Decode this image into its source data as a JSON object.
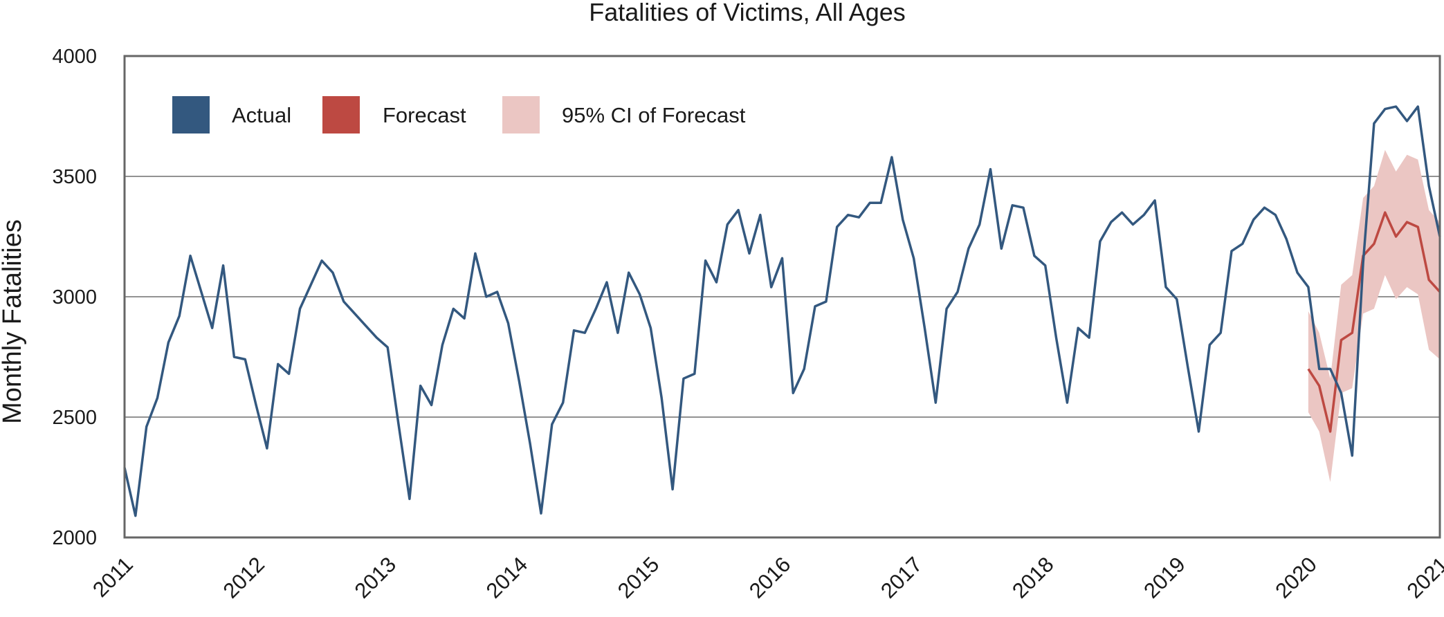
{
  "chart_data": {
    "type": "line",
    "title": "Fatalities of Victims, All Ages",
    "xlabel": "",
    "ylabel": "Monthly Fatalities",
    "xlim": [
      2011,
      2021
    ],
    "ylim": [
      2000,
      4000
    ],
    "y_ticks": [
      2000,
      2500,
      3000,
      3500,
      4000
    ],
    "y_tick_labels": [
      "2000",
      "2500",
      "3000",
      "3500",
      "4000"
    ],
    "gridlines": [
      2500,
      3000,
      3500
    ],
    "x_ticks": [
      2011,
      2012,
      2013,
      2014,
      2015,
      2016,
      2017,
      2018,
      2019,
      2020,
      2021
    ],
    "x_tick_labels": [
      "2011",
      "2012",
      "2013",
      "2014",
      "2015",
      "2016",
      "2017",
      "2018",
      "2019",
      "2020",
      "2021"
    ],
    "legend": {
      "position": "top-left",
      "entries": [
        {
          "label": "Actual",
          "color": "#33587f"
        },
        {
          "label": "Forecast",
          "color": "#bd4942"
        },
        {
          "label": "95% CI of Forecast",
          "color": "#ebc6c3"
        }
      ]
    },
    "series": [
      {
        "name": "Actual",
        "color": "#33587f",
        "x": [
          2011,
          2011.0833,
          2011.1667,
          2011.25,
          2011.3333,
          2011.4167,
          2011.5,
          2011.5833,
          2011.6667,
          2011.75,
          2011.8333,
          2011.9167,
          2012,
          2012.0833,
          2012.1667,
          2012.25,
          2012.3333,
          2012.4167,
          2012.5,
          2012.5833,
          2012.6667,
          2012.75,
          2012.8333,
          2012.9167,
          2013,
          2013.0833,
          2013.1667,
          2013.25,
          2013.3333,
          2013.4167,
          2013.5,
          2013.5833,
          2013.6667,
          2013.75,
          2013.8333,
          2013.9167,
          2014,
          2014.0833,
          2014.1667,
          2014.25,
          2014.3333,
          2014.4167,
          2014.5,
          2014.5833,
          2014.6667,
          2014.75,
          2014.8333,
          2014.9167,
          2015,
          2015.0833,
          2015.1667,
          2015.25,
          2015.3333,
          2015.4167,
          2015.5,
          2015.5833,
          2015.6667,
          2015.75,
          2015.8333,
          2015.9167,
          2016,
          2016.0833,
          2016.1667,
          2016.25,
          2016.3333,
          2016.4167,
          2016.5,
          2016.5833,
          2016.6667,
          2016.75,
          2016.8333,
          2016.9167,
          2017,
          2017.0833,
          2017.1667,
          2017.25,
          2017.3333,
          2017.4167,
          2017.5,
          2017.5833,
          2017.6667,
          2017.75,
          2017.8333,
          2017.9167,
          2018,
          2018.0833,
          2018.1667,
          2018.25,
          2018.3333,
          2018.4167,
          2018.5,
          2018.5833,
          2018.6667,
          2018.75,
          2018.8333,
          2018.9167,
          2019,
          2019.0833,
          2019.1667,
          2019.25,
          2019.3333,
          2019.4167,
          2019.5,
          2019.5833,
          2019.6667,
          2019.75,
          2019.8333,
          2019.9167,
          2020,
          2020.0833,
          2020.1667,
          2020.25,
          2020.3333,
          2020.4167,
          2020.5,
          2020.5833,
          2020.6667,
          2020.75,
          2020.8333,
          2020.9167,
          2021
        ],
        "values": [
          2290,
          2090,
          2460,
          2580,
          2810,
          2920,
          3170,
          3020,
          2870,
          3130,
          2750,
          2740,
          2550,
          2370,
          2720,
          2680,
          2950,
          3050,
          3150,
          3100,
          2980,
          2930,
          2880,
          2830,
          2790,
          2470,
          2160,
          2630,
          2550,
          2800,
          2950,
          2910,
          3180,
          3000,
          3020,
          2890,
          2650,
          2390,
          2100,
          2470,
          2560,
          2860,
          2850,
          2950,
          3060,
          2850,
          3100,
          3010,
          2870,
          2580,
          2200,
          2660,
          2680,
          3150,
          3060,
          3300,
          3360,
          3180,
          3340,
          3040,
          3160,
          2600,
          2700,
          2960,
          2980,
          3290,
          3340,
          3330,
          3390,
          3390,
          3580,
          3320,
          3160,
          2870,
          2560,
          2950,
          3020,
          3200,
          3300,
          3530,
          3200,
          3380,
          3370,
          3170,
          3130,
          2830,
          2560,
          2870,
          2830,
          3230,
          3310,
          3350,
          3300,
          3340,
          3400,
          3040,
          2990,
          2710,
          2440,
          2800,
          2850,
          3190,
          3220,
          3320,
          3370,
          3340,
          3240,
          3100,
          3040,
          2700,
          2700,
          2600,
          2340,
          3140,
          3720,
          3780,
          3790,
          3730,
          3790,
          3460,
          3250
        ]
      },
      {
        "name": "Forecast",
        "color": "#bd4942",
        "x": [
          2020,
          2020.0833,
          2020.1667,
          2020.25,
          2020.3333,
          2020.4167,
          2020.5,
          2020.5833,
          2020.6667,
          2020.75,
          2020.8333,
          2020.9167,
          2021
        ],
        "values": [
          2700,
          2630,
          2440,
          2820,
          2850,
          3170,
          3220,
          3350,
          3250,
          3310,
          3290,
          3070,
          3020
        ],
        "ci_lower": [
          2520,
          2440,
          2230,
          2600,
          2620,
          2930,
          2950,
          3090,
          2990,
          3040,
          3010,
          2780,
          2740
        ],
        "ci_upper": [
          2940,
          2850,
          2660,
          3050,
          3090,
          3410,
          3460,
          3610,
          3520,
          3590,
          3570,
          3360,
          3310
        ]
      }
    ]
  }
}
